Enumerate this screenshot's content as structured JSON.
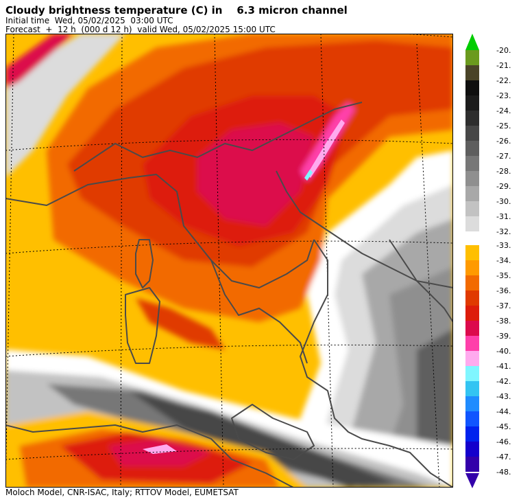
{
  "header": {
    "title": "Cloudy brightness temperature (C) in    6.3 micron channel",
    "initial_time": "Initial time  Wed, 05/02/2025  03:00 UTC",
    "forecast": "Forecast  +  12 h  (000 d 12 h)  valid Wed, 05/02/2025 15:00 UTC"
  },
  "footer": {
    "credit": "Moloch Model, CNR-ISAC, Italy; RTTOV Model, EUMETSAT"
  },
  "legend": {
    "upper": [
      {
        "label": "-20.",
        "color": "#00cc00"
      },
      {
        "label": "-21.",
        "color": "#6b9a1e"
      },
      {
        "label": "-22.",
        "color": "#4a4428"
      },
      {
        "label": "-23.",
        "color": "#0f0f0f"
      },
      {
        "label": "-24.",
        "color": "#1c1c1c"
      },
      {
        "label": "-25.",
        "color": "#2e2e2e"
      },
      {
        "label": "-26.",
        "color": "#474747"
      },
      {
        "label": "-27.",
        "color": "#5e5e5e"
      },
      {
        "label": "-28.",
        "color": "#777777"
      },
      {
        "label": "-29.",
        "color": "#8f8f8f"
      },
      {
        "label": "-30.",
        "color": "#a8a8a8"
      },
      {
        "label": "-31.",
        "color": "#c2c2c2"
      },
      {
        "label": "-32.",
        "color": "#dcdcdc"
      }
    ],
    "lower": [
      {
        "label": "-33.",
        "color": "#ffbf00"
      },
      {
        "label": "-34.",
        "color": "#ff9a00"
      },
      {
        "label": "-35.",
        "color": "#f26a00"
      },
      {
        "label": "-36.",
        "color": "#e03a00"
      },
      {
        "label": "-37.",
        "color": "#dd1c0a"
      },
      {
        "label": "-38.",
        "color": "#dc0a4c"
      },
      {
        "label": "-39.",
        "color": "#ff3faa"
      },
      {
        "label": "-40.",
        "color": "#ffaaee"
      },
      {
        "label": "-41.",
        "color": "#80f6ff"
      },
      {
        "label": "-42.",
        "color": "#33c4f2"
      },
      {
        "label": "-43.",
        "color": "#1f8cff"
      },
      {
        "label": "-44.",
        "color": "#1055ff"
      },
      {
        "label": "-45.",
        "color": "#0022ee"
      },
      {
        "label": "-46.",
        "color": "#1400cc"
      },
      {
        "label": "-47.",
        "color": "#3300aa"
      },
      {
        "label": "-48.",
        "color": "#3300aa"
      }
    ]
  },
  "colors": {
    "coastline": "#4a4a4a",
    "graticule": "#000000"
  }
}
